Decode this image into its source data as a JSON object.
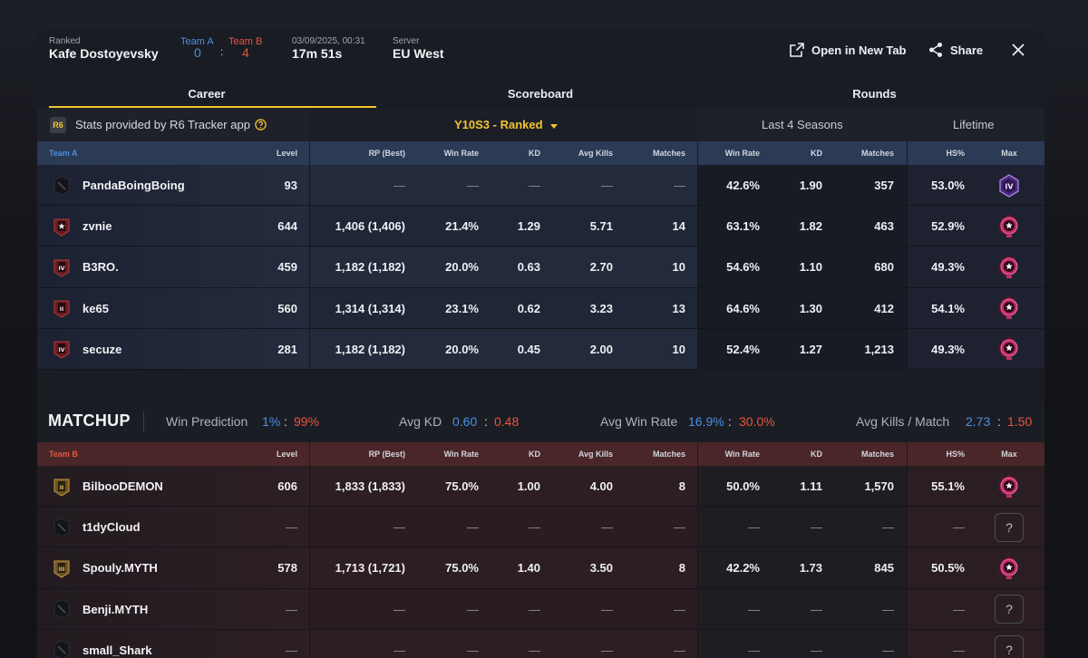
{
  "header": {
    "mode": "Ranked",
    "map": "Kafe Dostoyevsky",
    "team_a_label": "Team A",
    "team_b_label": "Team B",
    "team_a_score": "0",
    "score_sep": ":",
    "team_b_score": "4",
    "datetime": "03/09/2025, 00:31",
    "duration": "17m 51s",
    "server_label": "Server",
    "server": "EU West",
    "open_new_tab": "Open in New Tab",
    "share": "Share"
  },
  "tabs": [
    "Career",
    "Scoreboard",
    "Rounds"
  ],
  "section": {
    "r6_logo": "R6",
    "stats_provider": "Stats provided by R6 Tracker app",
    "season": "Y10S3 - Ranked",
    "last_seasons": "Last 4 Seasons",
    "lifetime": "Lifetime"
  },
  "columns": {
    "level": "Level",
    "rp": "RP (Best)",
    "win_rate": "Win Rate",
    "kd": "KD",
    "avg_kills": "Avg Kills",
    "matches": "Matches",
    "ls_win_rate": "Win Rate",
    "ls_kd": "KD",
    "ls_matches": "Matches",
    "hs": "HS%",
    "max": "Max"
  },
  "team_a": {
    "label": "Team A",
    "players": [
      {
        "name": "PandaBoingBoing",
        "level": "93",
        "rp": "—",
        "win_rate": "—",
        "kd": "—",
        "avg_kills": "—",
        "matches": "—",
        "ls_win_rate": "42.6%",
        "ls_kd": "1.90",
        "ls_matches": "357",
        "hs": "53.0%",
        "rank": "",
        "max": "IV"
      },
      {
        "name": "zvnie",
        "level": "644",
        "rp": "1,406 (1,406)",
        "win_rate": "21.4%",
        "kd": "1.29",
        "avg_kills": "5.71",
        "matches": "14",
        "ls_win_rate": "63.1%",
        "ls_kd": "1.82",
        "ls_matches": "463",
        "hs": "52.9%",
        "rank": "star",
        "max": "star"
      },
      {
        "name": "B3RO.",
        "level": "459",
        "rp": "1,182 (1,182)",
        "win_rate": "20.0%",
        "kd": "0.63",
        "avg_kills": "2.70",
        "matches": "10",
        "ls_win_rate": "54.6%",
        "ls_kd": "1.10",
        "ls_matches": "680",
        "hs": "49.3%",
        "rank": "IV",
        "max": "star"
      },
      {
        "name": "ke65",
        "level": "560",
        "rp": "1,314 (1,314)",
        "win_rate": "23.1%",
        "kd": "0.62",
        "avg_kills": "3.23",
        "matches": "13",
        "ls_win_rate": "64.6%",
        "ls_kd": "1.30",
        "ls_matches": "412",
        "hs": "54.1%",
        "rank": "II",
        "max": "star"
      },
      {
        "name": "secuze",
        "level": "281",
        "rp": "1,182 (1,182)",
        "win_rate": "20.0%",
        "kd": "0.45",
        "avg_kills": "2.00",
        "matches": "10",
        "ls_win_rate": "52.4%",
        "ls_kd": "1.27",
        "ls_matches": "1,213",
        "hs": "49.3%",
        "rank": "IV",
        "max": "star"
      }
    ]
  },
  "matchup": {
    "title": "MATCHUP",
    "win_prediction_label": "Win Prediction",
    "win_prediction_a": "1%",
    "win_prediction_b": "99%",
    "avg_kd_label": "Avg KD",
    "avg_kd_a": "0.60",
    "avg_kd_b": "0.48",
    "avg_win_rate_label": "Avg Win Rate",
    "avg_win_rate_a": "16.9%",
    "avg_win_rate_b": "30.0%",
    "avg_kills_label": "Avg Kills / Match",
    "avg_kills_a": "2.73",
    "avg_kills_b": "1.50",
    "sep": ":"
  },
  "team_b": {
    "label": "Team B",
    "players": [
      {
        "name": "BilbooDEMON",
        "level": "606",
        "rp": "1,833 (1,833)",
        "win_rate": "75.0%",
        "kd": "1.00",
        "avg_kills": "4.00",
        "matches": "8",
        "ls_win_rate": "50.0%",
        "ls_kd": "1.11",
        "ls_matches": "1,570",
        "hs": "55.1%",
        "rank": "gold-II",
        "max": "star"
      },
      {
        "name": "t1dyCloud",
        "level": "—",
        "rp": "—",
        "win_rate": "—",
        "kd": "—",
        "avg_kills": "—",
        "matches": "—",
        "ls_win_rate": "—",
        "ls_kd": "—",
        "ls_matches": "—",
        "hs": "—",
        "rank": "",
        "max": "?"
      },
      {
        "name": "Spouly.MYTH",
        "level": "578",
        "rp": "1,713 (1,721)",
        "win_rate": "75.0%",
        "kd": "1.40",
        "avg_kills": "3.50",
        "matches": "8",
        "ls_win_rate": "42.2%",
        "ls_kd": "1.73",
        "ls_matches": "845",
        "hs": "50.5%",
        "rank": "gold-III",
        "max": "star"
      },
      {
        "name": "Benji.MYTH",
        "level": "—",
        "rp": "—",
        "win_rate": "—",
        "kd": "—",
        "avg_kills": "—",
        "matches": "—",
        "ls_win_rate": "—",
        "ls_kd": "—",
        "ls_matches": "—",
        "hs": "—",
        "rank": "",
        "max": "?"
      },
      {
        "name": "small_Shark",
        "level": "—",
        "rp": "—",
        "win_rate": "—",
        "kd": "—",
        "avg_kills": "—",
        "matches": "—",
        "ls_win_rate": "—",
        "ls_kd": "—",
        "ls_matches": "—",
        "hs": "—",
        "rank": "",
        "max": "?"
      }
    ]
  },
  "colors": {
    "team_a": "#4a90e2",
    "team_b": "#e8553f",
    "accent": "#f4c431",
    "diamond": "#e0457b",
    "champion": "#9c5fd6"
  }
}
